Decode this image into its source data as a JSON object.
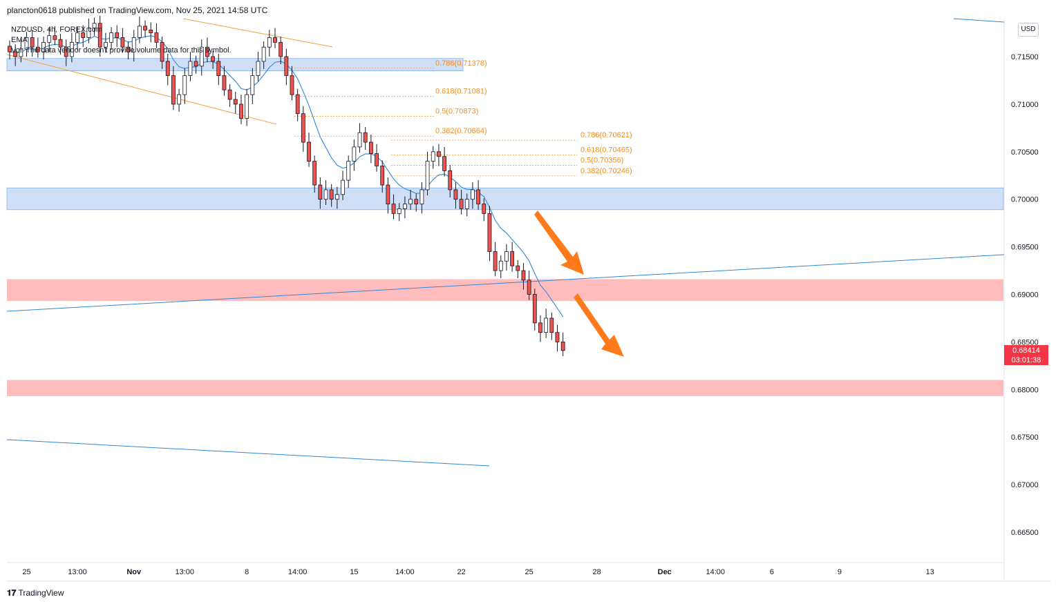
{
  "header": {
    "published": "plancton0618 published on TradingView.com, Nov 25, 2021 14:58 UTC"
  },
  "currency_button": "USD",
  "legend": {
    "symbol": "NZDUSD, 4h, FOREX.com",
    "ema": "EMA",
    "vol": "Vol: The data vendor doesn't provide volume data for this symbol."
  },
  "current_price": {
    "price": "0.68414",
    "countdown": "03:01:38"
  },
  "footer": {
    "brand": "TradingView"
  },
  "colors": {
    "zone_blue": "#cfdff8",
    "zone_blue_border": "#6a9de8",
    "zone_red": "#ffbcbc",
    "trendline": "#2f86d6",
    "channel": "#f7a03c",
    "fib": "#f28c1e",
    "arrow": "#ff7a1a",
    "bull": "#ffffff",
    "bear": "#ef5350",
    "wick": "#131722",
    "ema": "#3f8fdc"
  },
  "chart_data": {
    "type": "candlestick",
    "symbol": "NZDUSD",
    "timeframe": "4h",
    "y_axis_ticks": [
      0.715,
      0.71,
      0.705,
      0.7,
      0.695,
      0.69,
      0.685,
      0.68,
      0.675,
      0.67,
      0.665
    ],
    "y_axis_labels": [
      "0.71500",
      "0.71000",
      "0.70500",
      "0.70000",
      "0.69500",
      "0.69000",
      "0.68500",
      "0.68000",
      "0.67500",
      "0.67000",
      "0.66500"
    ],
    "ylim": [
      0.663,
      0.72
    ],
    "x_axis_labels": [
      "25",
      "13:00",
      "Nov",
      "13:00",
      "8",
      "14:00",
      "15",
      "14:00",
      "22",
      "25",
      "28",
      "Dec",
      "14:00",
      "6",
      "9",
      "13"
    ],
    "x_axis_label_index": [
      3,
      12,
      22,
      31,
      42,
      51,
      61,
      70,
      80,
      92,
      104,
      116,
      125,
      135,
      147,
      163
    ],
    "x_bold_labels": [
      "Nov",
      "Dec"
    ],
    "candle_start_index": 0,
    "close_path": [
      0.7155,
      0.715,
      0.7158,
      0.717,
      0.716,
      0.7155,
      0.7165,
      0.7172,
      0.7168,
      0.716,
      0.715,
      0.7165,
      0.7175,
      0.717,
      0.718,
      0.7185,
      0.716,
      0.7165,
      0.7175,
      0.717,
      0.716,
      0.7155,
      0.717,
      0.7182,
      0.7178,
      0.7175,
      0.7165,
      0.7145,
      0.713,
      0.71,
      0.711,
      0.713,
      0.7145,
      0.714,
      0.716,
      0.715,
      0.7145,
      0.713,
      0.7115,
      0.7105,
      0.71,
      0.7085,
      0.711,
      0.713,
      0.7145,
      0.716,
      0.717,
      0.7165,
      0.715,
      0.713,
      0.711,
      0.709,
      0.706,
      0.704,
      0.7015,
      0.7,
      0.701,
      0.7,
      0.7005,
      0.702,
      0.704,
      0.7055,
      0.707,
      0.706,
      0.7048,
      0.7035,
      0.7015,
      0.6995,
      0.6985,
      0.699,
      0.6995,
      0.7,
      0.6995,
      0.701,
      0.704,
      0.705,
      0.7045,
      0.703,
      0.701,
      0.7,
      0.699,
      0.7,
      0.701,
      0.6995,
      0.6985,
      0.6945,
      0.6925,
      0.6935,
      0.6945,
      0.693,
      0.6925,
      0.6915,
      0.69,
      0.687,
      0.686,
      0.6875,
      0.686,
      0.685,
      0.6841
    ],
    "ema_label": "EMA",
    "zones": [
      {
        "type": "resistance",
        "color": "blue",
        "from": 0.7135,
        "to": 0.7148
      },
      {
        "type": "support",
        "color": "blue",
        "from": 0.6989,
        "to": 0.7012
      },
      {
        "type": "level",
        "color": "red",
        "from": 0.6893,
        "to": 0.6916
      },
      {
        "type": "level",
        "color": "red",
        "from": 0.6793,
        "to": 0.681
      }
    ],
    "fib_set_1": [
      {
        "label": "0.786(0.71378)",
        "price": 0.71378
      },
      {
        "label": "0.618(0.71081)",
        "price": 0.71081
      },
      {
        "label": "0.5(0.70873)",
        "price": 0.70873
      },
      {
        "label": "0.382(0.70664)",
        "price": 0.70664
      }
    ],
    "fib_set_2": [
      {
        "label": "0.786(0.70621)",
        "price": 0.70621
      },
      {
        "label": "0.618(0.70465)",
        "price": 0.70465
      },
      {
        "label": "0.5(0.70356)",
        "price": 0.70356
      },
      {
        "label": "0.382(0.70246)",
        "price": 0.70246
      }
    ],
    "annotations": [
      "two orange arrows pointing down"
    ]
  }
}
